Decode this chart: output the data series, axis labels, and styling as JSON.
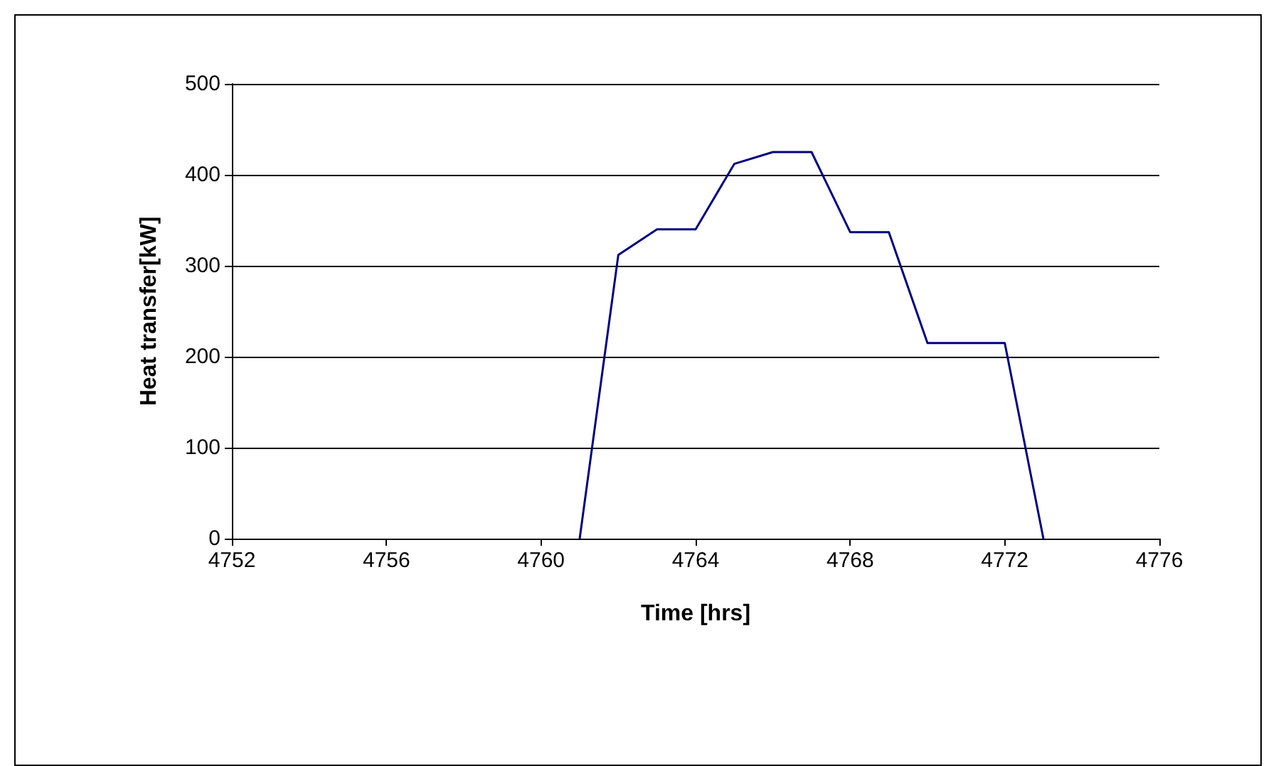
{
  "chart_data": {
    "type": "line",
    "xlabel": "Time [hrs]",
    "ylabel": "Heat transfer[kW]",
    "series": [
      {
        "color": "#000080",
        "x": [
          4761,
          4762,
          4763,
          4764,
          4765,
          4766,
          4767,
          4768,
          4769,
          4770,
          4771,
          4772,
          4773
        ],
        "values": [
          0,
          312,
          340,
          340,
          412,
          425,
          425,
          337,
          337,
          215,
          215,
          215,
          0
        ]
      }
    ],
    "xlim": [
      4752,
      4776
    ],
    "xticks": [
      4752,
      4756,
      4760,
      4764,
      4768,
      4772,
      4776
    ],
    "ylim": [
      0,
      500
    ],
    "yticks": [
      0,
      100,
      200,
      300,
      400,
      500
    ],
    "grid": "y",
    "marker": "none",
    "line_style": "solid"
  }
}
